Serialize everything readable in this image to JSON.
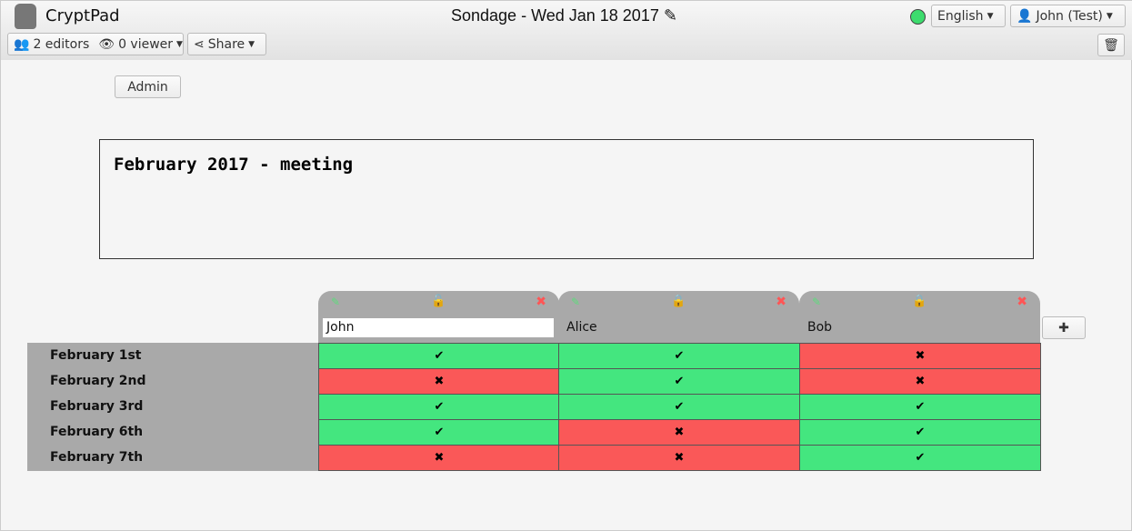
{
  "app": {
    "name": "CryptPad",
    "title": "Sondage - Wed Jan 18 2017",
    "status_color": "#3ddc6e"
  },
  "toolbar": {
    "editors": "2 editors",
    "viewers": "0 viewer",
    "share": "Share",
    "language": "English",
    "user": "John (Test)"
  },
  "admin_label": "Admin",
  "poll": {
    "title": "February 2017 - meeting"
  },
  "columns": [
    {
      "name": "John",
      "locked": false,
      "editing": true
    },
    {
      "name": "Alice",
      "locked": true,
      "editing": false
    },
    {
      "name": "Bob",
      "locked": true,
      "editing": false
    }
  ],
  "rows": [
    {
      "label": "February 1st",
      "values": [
        true,
        true,
        false
      ]
    },
    {
      "label": "February 2nd",
      "values": [
        false,
        true,
        false
      ]
    },
    {
      "label": "February 3rd",
      "values": [
        true,
        true,
        true
      ]
    },
    {
      "label": "February 6th",
      "values": [
        true,
        false,
        true
      ]
    },
    {
      "label": "February 7th",
      "values": [
        false,
        false,
        true
      ]
    }
  ],
  "colors": {
    "yes": "#44e67f",
    "no": "#fa5858"
  }
}
